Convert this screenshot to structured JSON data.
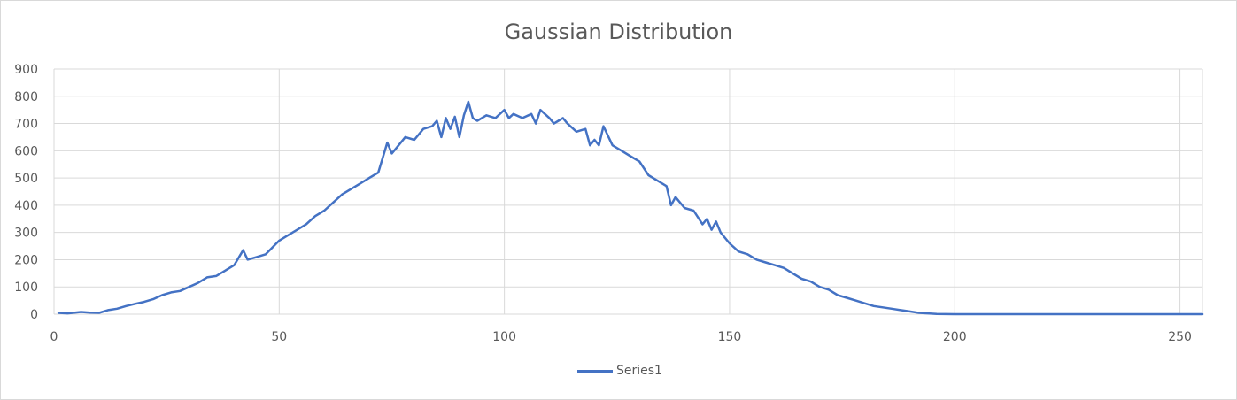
{
  "chart_data": {
    "type": "line",
    "title": "Gaussian Distribution",
    "xlabel": "",
    "ylabel": "",
    "xlim": [
      0,
      255
    ],
    "ylim": [
      0,
      900
    ],
    "x_ticks": [
      "0",
      "50",
      "100",
      "150",
      "200",
      "250"
    ],
    "y_ticks": [
      "0",
      "100",
      "200",
      "300",
      "400",
      "500",
      "600",
      "700",
      "800",
      "900"
    ],
    "grid": true,
    "legend_position": "bottom",
    "series_color": "#4472c4",
    "series": [
      {
        "name": "Series1",
        "x": [
          1,
          3,
          6,
          8,
          10,
          12,
          14,
          16,
          18,
          20,
          22,
          24,
          26,
          28,
          30,
          32,
          34,
          36,
          38,
          40,
          42,
          43,
          45,
          47,
          50,
          52,
          54,
          56,
          58,
          60,
          62,
          64,
          66,
          68,
          70,
          72,
          74,
          75,
          76,
          78,
          80,
          82,
          84,
          85,
          86,
          87,
          88,
          89,
          90,
          91,
          92,
          93,
          94,
          96,
          98,
          100,
          101,
          102,
          104,
          106,
          107,
          108,
          110,
          111,
          112,
          113,
          114,
          116,
          118,
          119,
          120,
          121,
          122,
          124,
          126,
          128,
          130,
          132,
          134,
          136,
          137,
          138,
          140,
          142,
          144,
          145,
          146,
          147,
          148,
          150,
          152,
          154,
          156,
          158,
          160,
          162,
          164,
          166,
          168,
          170,
          172,
          174,
          176,
          178,
          180,
          182,
          184,
          186,
          188,
          190,
          192,
          194,
          196,
          200,
          210,
          220,
          230,
          240,
          250,
          255
        ],
        "values": [
          5,
          3,
          8,
          6,
          5,
          15,
          20,
          30,
          38,
          45,
          55,
          70,
          80,
          85,
          100,
          115,
          135,
          140,
          160,
          180,
          235,
          200,
          210,
          220,
          270,
          290,
          310,
          330,
          360,
          380,
          410,
          440,
          460,
          480,
          500,
          520,
          630,
          590,
          610,
          650,
          640,
          680,
          690,
          710,
          650,
          720,
          680,
          725,
          650,
          730,
          780,
          720,
          710,
          730,
          720,
          750,
          720,
          735,
          720,
          735,
          700,
          750,
          720,
          700,
          710,
          720,
          700,
          670,
          680,
          620,
          640,
          620,
          690,
          620,
          600,
          580,
          560,
          510,
          490,
          470,
          400,
          430,
          390,
          380,
          330,
          350,
          310,
          340,
          300,
          260,
          230,
          220,
          200,
          190,
          180,
          170,
          150,
          130,
          120,
          100,
          90,
          70,
          60,
          50,
          40,
          30,
          25,
          20,
          15,
          10,
          5,
          3,
          1,
          0,
          0,
          0,
          0,
          0,
          0,
          0
        ]
      }
    ]
  }
}
